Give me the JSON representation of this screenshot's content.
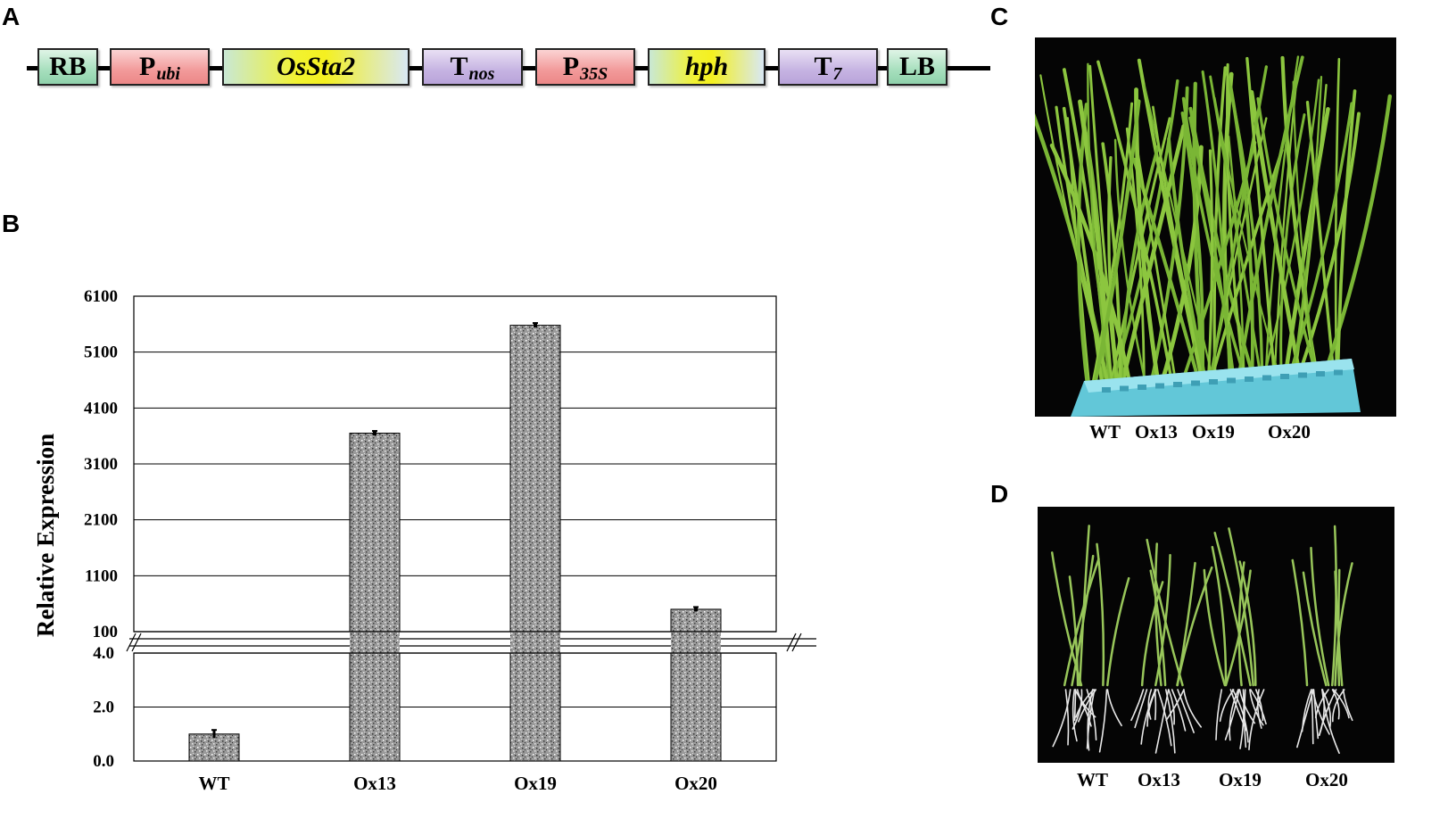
{
  "panels": {
    "a": "A",
    "b": "B",
    "c": "C",
    "d": "D"
  },
  "construct": {
    "elements": [
      {
        "main": "RB",
        "sub": "",
        "italic": false,
        "style": "g-green"
      },
      {
        "main": "P",
        "sub": "ubi",
        "italic": false,
        "style": "g-red"
      },
      {
        "main": "OsSta2",
        "sub": "",
        "italic": true,
        "style": "g-yellow"
      },
      {
        "main": "T",
        "sub": "nos",
        "italic": false,
        "style": "g-purple"
      },
      {
        "main": "P",
        "sub": "35S",
        "italic": false,
        "style": "g-red"
      },
      {
        "main": "hph",
        "sub": "",
        "italic": true,
        "style": "g-yellow"
      },
      {
        "main": "T",
        "sub": "7",
        "italic": false,
        "style": "g-purple"
      },
      {
        "main": "LB",
        "sub": "",
        "italic": false,
        "style": "g-green"
      }
    ]
  },
  "chart_data": {
    "type": "bar",
    "ylabel": "Relative Expression",
    "categories": [
      "WT",
      "Ox13",
      "Ox19",
      "Ox20"
    ],
    "values": [
      1.0,
      3650,
      5580,
      500
    ],
    "errors": [
      0.15,
      40,
      40,
      40
    ],
    "broken_axis": true,
    "lower_ylim": [
      0,
      4.0
    ],
    "lower_ticks": [
      "0.0",
      "2.0",
      "4.0"
    ],
    "upper_ylim": [
      100,
      6100
    ],
    "upper_ticks": [
      "100",
      "1100",
      "2100",
      "3100",
      "4100",
      "5100",
      "6100"
    ],
    "grid": true
  },
  "photo_c": {
    "labels": [
      "WT",
      "Ox13",
      "Ox19",
      "Ox20"
    ]
  },
  "photo_d": {
    "labels": [
      "WT",
      "Ox13",
      "Ox19",
      "Ox20"
    ]
  },
  "colors": {
    "bar": "#9a9a9a",
    "plant": "#8cc63f",
    "tray": "#6fd0e0",
    "background_photo": "#050505"
  }
}
